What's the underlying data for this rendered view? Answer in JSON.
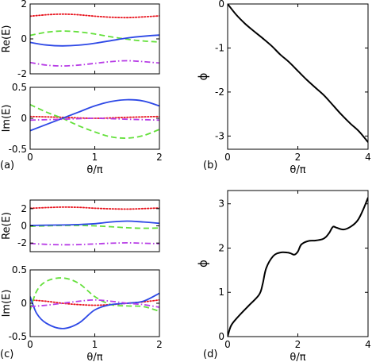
{
  "figure": {
    "panel_labels": [
      "(a)",
      "(b)",
      "(c)",
      "(d)"
    ]
  },
  "colors": {
    "red": "#e8141e",
    "green": "#63e03a",
    "blue": "#2d48e6",
    "magenta": "#b83ee6",
    "black": "#000000"
  },
  "chart_data": [
    {
      "id": "a-re",
      "type": "line",
      "panel_label": "(a)",
      "xlabel": "",
      "ylabel": "Re(E)",
      "xlim": [
        0,
        2
      ],
      "ylim": [
        -2,
        2
      ],
      "xticks": [
        "",
        "",
        ""
      ],
      "yticks": [
        "-2",
        "0",
        "2"
      ],
      "ytick_values": [
        -2,
        0,
        2
      ],
      "series": [
        {
          "style": "dotted",
          "color": "red",
          "x": [
            0,
            0.25,
            0.5,
            0.75,
            1,
            1.25,
            1.5,
            1.75,
            2
          ],
          "y": [
            1.3,
            1.38,
            1.42,
            1.38,
            1.3,
            1.24,
            1.22,
            1.26,
            1.32
          ]
        },
        {
          "style": "dashed",
          "color": "green",
          "x": [
            0,
            0.25,
            0.5,
            0.75,
            1,
            1.25,
            1.5,
            1.75,
            2
          ],
          "y": [
            0.2,
            0.38,
            0.45,
            0.4,
            0.28,
            0.12,
            -0.02,
            -0.12,
            -0.18
          ]
        },
        {
          "style": "solid",
          "color": "blue",
          "x": [
            0,
            0.25,
            0.5,
            0.75,
            1,
            1.25,
            1.5,
            1.75,
            2
          ],
          "y": [
            -0.2,
            -0.35,
            -0.4,
            -0.36,
            -0.25,
            -0.1,
            0.05,
            0.15,
            0.22
          ]
        },
        {
          "style": "dashdot",
          "color": "magenta",
          "x": [
            0,
            0.25,
            0.5,
            0.75,
            1,
            1.25,
            1.5,
            1.75,
            2
          ],
          "y": [
            -1.35,
            -1.5,
            -1.55,
            -1.5,
            -1.4,
            -1.3,
            -1.25,
            -1.3,
            -1.38
          ]
        }
      ]
    },
    {
      "id": "a-im",
      "type": "line",
      "panel_label": "(a)",
      "xlabel": "θ/π",
      "ylabel": "Im(E)",
      "xlim": [
        0,
        2
      ],
      "ylim": [
        -0.5,
        0.5
      ],
      "xticks": [
        "0",
        "1",
        "2"
      ],
      "yticks": [
        "-0.5",
        "0",
        "0.5"
      ],
      "ytick_values": [
        -0.5,
        0,
        0.5
      ],
      "series": [
        {
          "style": "dotted",
          "color": "red",
          "x": [
            0,
            0.5,
            1,
            1.5,
            2
          ],
          "y": [
            0.03,
            0.015,
            0,
            0.015,
            0.03
          ]
        },
        {
          "style": "dashed",
          "color": "green",
          "x": [
            0,
            0.25,
            0.5,
            0.75,
            1,
            1.25,
            1.5,
            1.75,
            2
          ],
          "y": [
            0.22,
            0.1,
            0.0,
            -0.12,
            -0.22,
            -0.3,
            -0.32,
            -0.28,
            -0.18
          ]
        },
        {
          "style": "solid",
          "color": "blue",
          "x": [
            0,
            0.25,
            0.5,
            0.75,
            1,
            1.25,
            1.5,
            1.75,
            2
          ],
          "y": [
            -0.2,
            -0.1,
            0.0,
            0.1,
            0.2,
            0.27,
            0.3,
            0.28,
            0.2
          ]
        },
        {
          "style": "dashdot",
          "color": "magenta",
          "x": [
            0,
            0.5,
            1,
            1.5,
            2
          ],
          "y": [
            -0.03,
            -0.015,
            0,
            -0.015,
            -0.03
          ]
        }
      ]
    },
    {
      "id": "b",
      "type": "line",
      "panel_label": "(b)",
      "xlabel": "θ/π",
      "ylabel": "ϕ",
      "xlim": [
        0,
        4
      ],
      "ylim": [
        -3.3,
        0
      ],
      "xticks": [
        "0",
        "2",
        "4"
      ],
      "xtick_values": [
        0,
        2,
        4
      ],
      "yticks": [
        "0",
        "-1",
        "-2",
        "-3"
      ],
      "ytick_values": [
        0,
        -1,
        -2,
        -3
      ],
      "series": [
        {
          "style": "solid",
          "color": "black",
          "x": [
            0,
            0.25,
            0.5,
            0.75,
            1,
            1.25,
            1.5,
            1.75,
            2,
            2.25,
            2.5,
            2.75,
            3,
            3.25,
            3.5,
            3.75,
            4
          ],
          "y": [
            0,
            -0.25,
            -0.45,
            -0.62,
            -0.78,
            -0.95,
            -1.15,
            -1.32,
            -1.52,
            -1.72,
            -1.9,
            -2.08,
            -2.3,
            -2.52,
            -2.72,
            -2.9,
            -3.14
          ]
        }
      ]
    },
    {
      "id": "c-re",
      "type": "line",
      "panel_label": "(c)",
      "xlabel": "",
      "ylabel": "Re(E)",
      "xlim": [
        0,
        2
      ],
      "ylim": [
        -3,
        3
      ],
      "xticks": [
        "",
        "",
        ""
      ],
      "yticks": [
        "-2",
        "0",
        "2"
      ],
      "ytick_values": [
        -2,
        0,
        2
      ],
      "series": [
        {
          "style": "dotted",
          "color": "red",
          "x": [
            0,
            0.25,
            0.5,
            0.75,
            1,
            1.25,
            1.5,
            1.75,
            2
          ],
          "y": [
            2.05,
            2.12,
            2.18,
            2.15,
            2.05,
            1.98,
            1.95,
            2.0,
            2.08
          ]
        },
        {
          "style": "dashed",
          "color": "green",
          "x": [
            0,
            0.25,
            0.5,
            0.75,
            1,
            1.25,
            1.5,
            1.75,
            2
          ],
          "y": [
            -0.05,
            0.0,
            0.05,
            0.05,
            0.0,
            -0.1,
            -0.22,
            -0.28,
            -0.25
          ]
        },
        {
          "style": "solid",
          "color": "blue",
          "x": [
            0,
            0.25,
            0.5,
            0.75,
            1,
            1.25,
            1.5,
            1.75,
            2
          ],
          "y": [
            0.05,
            0.08,
            0.1,
            0.15,
            0.25,
            0.45,
            0.55,
            0.45,
            0.3
          ]
        },
        {
          "style": "dashdot",
          "color": "magenta",
          "x": [
            0,
            0.25,
            0.5,
            0.75,
            1,
            1.25,
            1.5,
            1.75,
            2
          ],
          "y": [
            -2.05,
            -2.15,
            -2.2,
            -2.18,
            -2.1,
            -2.02,
            -1.98,
            -2.02,
            -2.08
          ]
        }
      ]
    },
    {
      "id": "c-im",
      "type": "line",
      "panel_label": "(c)",
      "xlabel": "θ/π",
      "ylabel": "Im(E)",
      "xlim": [
        0,
        2
      ],
      "ylim": [
        -0.5,
        0.5
      ],
      "xticks": [
        "0",
        "1",
        "2"
      ],
      "yticks": [
        "-0.5",
        "0",
        "0.5"
      ],
      "ytick_values": [
        -0.5,
        0,
        0.5
      ],
      "series": [
        {
          "style": "dotted",
          "color": "red",
          "x": [
            0,
            0.25,
            0.5,
            0.75,
            1,
            1.25,
            1.5,
            1.75,
            2
          ],
          "y": [
            0.05,
            0.03,
            0.0,
            -0.02,
            -0.03,
            -0.02,
            0.0,
            0.02,
            0.05
          ]
        },
        {
          "style": "dashed",
          "color": "green",
          "x": [
            0,
            0.1,
            0.25,
            0.5,
            0.75,
            1,
            1.25,
            1.5,
            1.75,
            2
          ],
          "y": [
            -0.1,
            0.18,
            0.33,
            0.38,
            0.3,
            0.1,
            -0.02,
            -0.04,
            -0.05,
            -0.12
          ]
        },
        {
          "style": "solid",
          "color": "blue",
          "x": [
            0,
            0.1,
            0.25,
            0.5,
            0.75,
            1,
            1.25,
            1.5,
            1.75,
            2
          ],
          "y": [
            0.1,
            -0.15,
            -0.3,
            -0.38,
            -0.3,
            -0.1,
            -0.02,
            0.0,
            0.03,
            0.15
          ]
        },
        {
          "style": "dashdot",
          "color": "magenta",
          "x": [
            0,
            0.25,
            0.5,
            0.75,
            1,
            1.25,
            1.5,
            1.75,
            2
          ],
          "y": [
            -0.05,
            -0.03,
            0.0,
            0.03,
            0.05,
            0.03,
            0.0,
            -0.02,
            -0.06
          ]
        }
      ]
    },
    {
      "id": "d",
      "type": "line",
      "panel_label": "(d)",
      "xlabel": "θ/π",
      "ylabel": "ϕ",
      "xlim": [
        0,
        4
      ],
      "ylim": [
        0,
        3.3
      ],
      "xticks": [
        "0",
        "2",
        "4"
      ],
      "xtick_values": [
        0,
        2,
        4
      ],
      "yticks": [
        "0",
        "1",
        "2",
        "3"
      ],
      "ytick_values": [
        0,
        1,
        2,
        3
      ],
      "series": [
        {
          "style": "solid",
          "color": "black",
          "x": [
            0,
            0.1,
            0.3,
            0.6,
            0.9,
            1.0,
            1.1,
            1.3,
            1.5,
            1.7,
            1.8,
            1.9,
            2.0,
            2.1,
            2.3,
            2.5,
            2.7,
            2.8,
            2.9,
            3.0,
            3.1,
            3.3,
            3.5,
            3.7,
            3.85,
            4.0
          ],
          "y": [
            0,
            0.25,
            0.45,
            0.7,
            0.95,
            1.2,
            1.55,
            1.82,
            1.9,
            1.9,
            1.88,
            1.85,
            1.92,
            2.08,
            2.16,
            2.17,
            2.2,
            2.25,
            2.35,
            2.48,
            2.46,
            2.42,
            2.48,
            2.62,
            2.85,
            3.14
          ]
        }
      ]
    }
  ]
}
